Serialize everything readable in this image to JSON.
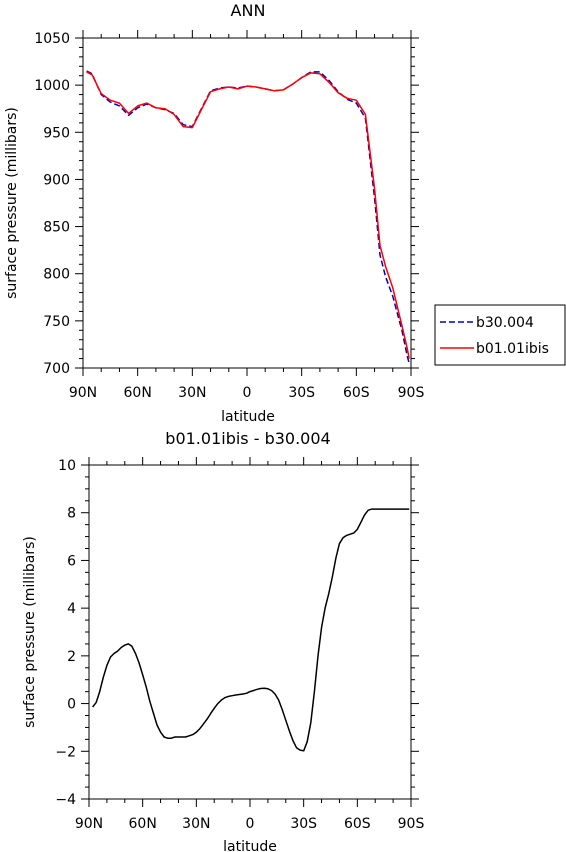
{
  "chart_data": [
    {
      "type": "line",
      "title": "ANN",
      "xlabel": "latitude",
      "ylabel": "surface pressure (millibars)",
      "xlim": [
        -90,
        90
      ],
      "ylim": [
        700,
        1050
      ],
      "x_ticks": [
        -90,
        -60,
        -30,
        0,
        30,
        60,
        90
      ],
      "x_tick_labels": [
        "90N",
        "60N",
        "30N",
        "0",
        "30S",
        "60S",
        "90S"
      ],
      "y_ticks": [
        700,
        750,
        800,
        850,
        900,
        950,
        1000,
        1050
      ],
      "y_tick_labels": [
        "700",
        "750",
        "800",
        "850",
        "900",
        "950",
        "1000",
        "1050"
      ],
      "legend_placement": "outside-right",
      "series": [
        {
          "name": "b30.004",
          "color": "#0000cc",
          "dash": "dashed",
          "x": [
            -88,
            -85,
            -80,
            -75,
            -70,
            -65,
            -60,
            -55,
            -50,
            -45,
            -40,
            -35,
            -30,
            -25,
            -20,
            -15,
            -10,
            -5,
            0,
            5,
            10,
            15,
            20,
            25,
            30,
            35,
            40,
            45,
            50,
            55,
            60,
            65,
            70,
            73,
            76,
            80,
            85,
            88,
            89
          ],
          "y": [
            1015,
            1012,
            990,
            982,
            978,
            968,
            976,
            980,
            976,
            974,
            970,
            958,
            956,
            975,
            994,
            997,
            998,
            997,
            999,
            998,
            996,
            994,
            995,
            1001,
            1008,
            1014,
            1014,
            1005,
            993,
            985,
            981,
            965,
            880,
            820,
            797,
            776,
            740,
            712,
            705
          ]
        },
        {
          "name": "b01.01ibis",
          "color": "#ff0000",
          "dash": "solid",
          "x": [
            -88,
            -85,
            -80,
            -75,
            -70,
            -65,
            -60,
            -55,
            -50,
            -45,
            -40,
            -35,
            -30,
            -25,
            -20,
            -15,
            -10,
            -5,
            0,
            5,
            10,
            15,
            20,
            25,
            30,
            35,
            40,
            45,
            50,
            55,
            60,
            65,
            70,
            73,
            76,
            80,
            85,
            88,
            89
          ],
          "y": [
            1014,
            1011,
            991,
            984,
            981,
            970,
            978,
            981,
            976,
            975,
            969,
            956,
            955,
            974,
            993,
            996,
            998,
            996,
            999,
            998,
            996,
            994,
            995,
            1001,
            1008,
            1013,
            1012,
            1003,
            992,
            986,
            984,
            969,
            890,
            830,
            808,
            785,
            745,
            720,
            710
          ]
        }
      ]
    },
    {
      "type": "line",
      "title": "b01.01ibis - b30.004",
      "xlabel": "latitude",
      "ylabel": "surface pressure (millibars)",
      "xlim": [
        -90,
        90
      ],
      "ylim": [
        -4,
        10
      ],
      "x_ticks": [
        -90,
        -60,
        -30,
        0,
        30,
        60,
        90
      ],
      "x_tick_labels": [
        "90N",
        "60N",
        "30N",
        "0",
        "30S",
        "60S",
        "90S"
      ],
      "y_ticks": [
        -4,
        -2,
        0,
        2,
        4,
        6,
        8,
        10
      ],
      "y_tick_labels": [
        "−4",
        "−2",
        "0",
        "2",
        "4",
        "6",
        "8",
        "10"
      ],
      "series": [
        {
          "name": "",
          "color": "#000000",
          "dash": "solid",
          "x": [
            -88,
            -86,
            -84,
            -82,
            -80,
            -78,
            -76,
            -74,
            -72,
            -70,
            -68,
            -66,
            -64,
            -62,
            -60,
            -58,
            -56,
            -54,
            -52,
            -50,
            -48,
            -46,
            -44,
            -42,
            -40,
            -38,
            -36,
            -34,
            -32,
            -30,
            -28,
            -26,
            -24,
            -22,
            -20,
            -18,
            -16,
            -14,
            -12,
            -10,
            -8,
            -6,
            -4,
            -2,
            0,
            2,
            4,
            6,
            8,
            10,
            12,
            14,
            16,
            18,
            20,
            22,
            24,
            26,
            28,
            30,
            32,
            34,
            36,
            38,
            40,
            42,
            44,
            46,
            48,
            50,
            52,
            54,
            56,
            58,
            60,
            62,
            64,
            66,
            68,
            70,
            72,
            74,
            76,
            78,
            80,
            82,
            84,
            86,
            88,
            89
          ],
          "y": [
            -0.15,
            0.05,
            0.5,
            1.1,
            1.6,
            1.95,
            2.1,
            2.2,
            2.35,
            2.45,
            2.5,
            2.4,
            2.1,
            1.7,
            1.2,
            0.7,
            0.1,
            -0.4,
            -0.9,
            -1.2,
            -1.4,
            -1.45,
            -1.45,
            -1.4,
            -1.4,
            -1.4,
            -1.4,
            -1.35,
            -1.3,
            -1.2,
            -1.05,
            -0.85,
            -0.65,
            -0.42,
            -0.2,
            0.0,
            0.15,
            0.25,
            0.3,
            0.33,
            0.36,
            0.38,
            0.4,
            0.43,
            0.5,
            0.55,
            0.6,
            0.63,
            0.64,
            0.62,
            0.55,
            0.4,
            0.15,
            -0.25,
            -0.7,
            -1.15,
            -1.55,
            -1.85,
            -1.95,
            -1.98,
            -1.6,
            -0.8,
            0.5,
            2.0,
            3.2,
            4.0,
            4.6,
            5.3,
            6.1,
            6.7,
            6.95,
            7.05,
            7.1,
            7.15,
            7.3,
            7.6,
            7.9,
            8.1,
            8.15,
            8.15,
            8.15,
            8.15,
            8.15,
            8.15,
            8.15,
            8.15,
            8.15,
            8.15,
            8.15,
            8.15
          ]
        }
      ]
    }
  ]
}
